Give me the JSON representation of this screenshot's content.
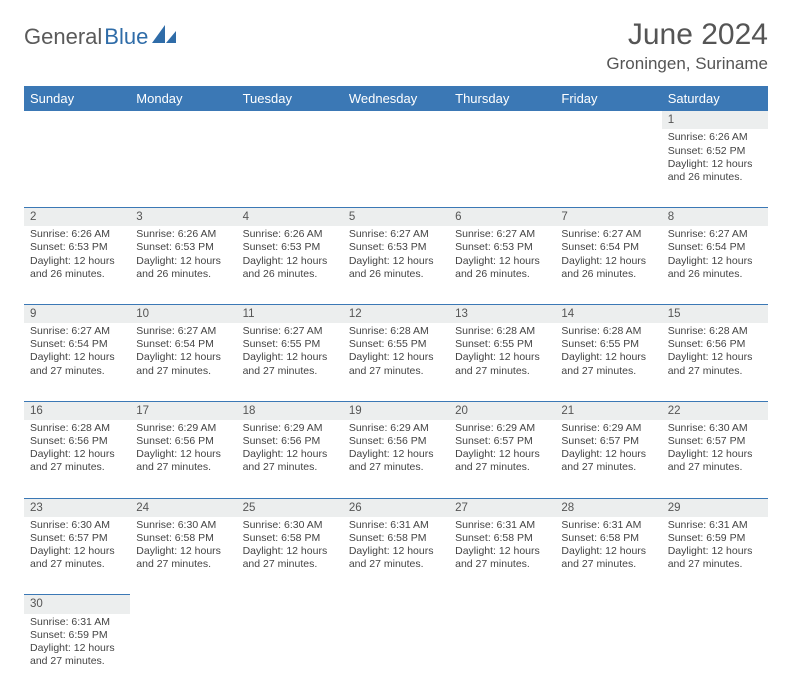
{
  "logo": {
    "text1": "General",
    "text2": "Blue"
  },
  "title": "June 2024",
  "location": "Groningen, Suriname",
  "columns": [
    "Sunday",
    "Monday",
    "Tuesday",
    "Wednesday",
    "Thursday",
    "Friday",
    "Saturday"
  ],
  "colors": {
    "header_bg": "#3b78b5",
    "header_text": "#ffffff",
    "daynum_bg": "#eceeee",
    "row_divider": "#3b78b5",
    "body_text": "#444444",
    "title_text": "#555555",
    "logo_gray": "#5a5a5a",
    "logo_blue": "#2f6ca8"
  },
  "weeks": [
    [
      null,
      null,
      null,
      null,
      null,
      null,
      {
        "n": "1",
        "sunrise": "Sunrise: 6:26 AM",
        "sunset": "Sunset: 6:52 PM",
        "daylight": "Daylight: 12 hours and 26 minutes."
      }
    ],
    [
      {
        "n": "2",
        "sunrise": "Sunrise: 6:26 AM",
        "sunset": "Sunset: 6:53 PM",
        "daylight": "Daylight: 12 hours and 26 minutes."
      },
      {
        "n": "3",
        "sunrise": "Sunrise: 6:26 AM",
        "sunset": "Sunset: 6:53 PM",
        "daylight": "Daylight: 12 hours and 26 minutes."
      },
      {
        "n": "4",
        "sunrise": "Sunrise: 6:26 AM",
        "sunset": "Sunset: 6:53 PM",
        "daylight": "Daylight: 12 hours and 26 minutes."
      },
      {
        "n": "5",
        "sunrise": "Sunrise: 6:27 AM",
        "sunset": "Sunset: 6:53 PM",
        "daylight": "Daylight: 12 hours and 26 minutes."
      },
      {
        "n": "6",
        "sunrise": "Sunrise: 6:27 AM",
        "sunset": "Sunset: 6:53 PM",
        "daylight": "Daylight: 12 hours and 26 minutes."
      },
      {
        "n": "7",
        "sunrise": "Sunrise: 6:27 AM",
        "sunset": "Sunset: 6:54 PM",
        "daylight": "Daylight: 12 hours and 26 minutes."
      },
      {
        "n": "8",
        "sunrise": "Sunrise: 6:27 AM",
        "sunset": "Sunset: 6:54 PM",
        "daylight": "Daylight: 12 hours and 26 minutes."
      }
    ],
    [
      {
        "n": "9",
        "sunrise": "Sunrise: 6:27 AM",
        "sunset": "Sunset: 6:54 PM",
        "daylight": "Daylight: 12 hours and 27 minutes."
      },
      {
        "n": "10",
        "sunrise": "Sunrise: 6:27 AM",
        "sunset": "Sunset: 6:54 PM",
        "daylight": "Daylight: 12 hours and 27 minutes."
      },
      {
        "n": "11",
        "sunrise": "Sunrise: 6:27 AM",
        "sunset": "Sunset: 6:55 PM",
        "daylight": "Daylight: 12 hours and 27 minutes."
      },
      {
        "n": "12",
        "sunrise": "Sunrise: 6:28 AM",
        "sunset": "Sunset: 6:55 PM",
        "daylight": "Daylight: 12 hours and 27 minutes."
      },
      {
        "n": "13",
        "sunrise": "Sunrise: 6:28 AM",
        "sunset": "Sunset: 6:55 PM",
        "daylight": "Daylight: 12 hours and 27 minutes."
      },
      {
        "n": "14",
        "sunrise": "Sunrise: 6:28 AM",
        "sunset": "Sunset: 6:55 PM",
        "daylight": "Daylight: 12 hours and 27 minutes."
      },
      {
        "n": "15",
        "sunrise": "Sunrise: 6:28 AM",
        "sunset": "Sunset: 6:56 PM",
        "daylight": "Daylight: 12 hours and 27 minutes."
      }
    ],
    [
      {
        "n": "16",
        "sunrise": "Sunrise: 6:28 AM",
        "sunset": "Sunset: 6:56 PM",
        "daylight": "Daylight: 12 hours and 27 minutes."
      },
      {
        "n": "17",
        "sunrise": "Sunrise: 6:29 AM",
        "sunset": "Sunset: 6:56 PM",
        "daylight": "Daylight: 12 hours and 27 minutes."
      },
      {
        "n": "18",
        "sunrise": "Sunrise: 6:29 AM",
        "sunset": "Sunset: 6:56 PM",
        "daylight": "Daylight: 12 hours and 27 minutes."
      },
      {
        "n": "19",
        "sunrise": "Sunrise: 6:29 AM",
        "sunset": "Sunset: 6:56 PM",
        "daylight": "Daylight: 12 hours and 27 minutes."
      },
      {
        "n": "20",
        "sunrise": "Sunrise: 6:29 AM",
        "sunset": "Sunset: 6:57 PM",
        "daylight": "Daylight: 12 hours and 27 minutes."
      },
      {
        "n": "21",
        "sunrise": "Sunrise: 6:29 AM",
        "sunset": "Sunset: 6:57 PM",
        "daylight": "Daylight: 12 hours and 27 minutes."
      },
      {
        "n": "22",
        "sunrise": "Sunrise: 6:30 AM",
        "sunset": "Sunset: 6:57 PM",
        "daylight": "Daylight: 12 hours and 27 minutes."
      }
    ],
    [
      {
        "n": "23",
        "sunrise": "Sunrise: 6:30 AM",
        "sunset": "Sunset: 6:57 PM",
        "daylight": "Daylight: 12 hours and 27 minutes."
      },
      {
        "n": "24",
        "sunrise": "Sunrise: 6:30 AM",
        "sunset": "Sunset: 6:58 PM",
        "daylight": "Daylight: 12 hours and 27 minutes."
      },
      {
        "n": "25",
        "sunrise": "Sunrise: 6:30 AM",
        "sunset": "Sunset: 6:58 PM",
        "daylight": "Daylight: 12 hours and 27 minutes."
      },
      {
        "n": "26",
        "sunrise": "Sunrise: 6:31 AM",
        "sunset": "Sunset: 6:58 PM",
        "daylight": "Daylight: 12 hours and 27 minutes."
      },
      {
        "n": "27",
        "sunrise": "Sunrise: 6:31 AM",
        "sunset": "Sunset: 6:58 PM",
        "daylight": "Daylight: 12 hours and 27 minutes."
      },
      {
        "n": "28",
        "sunrise": "Sunrise: 6:31 AM",
        "sunset": "Sunset: 6:58 PM",
        "daylight": "Daylight: 12 hours and 27 minutes."
      },
      {
        "n": "29",
        "sunrise": "Sunrise: 6:31 AM",
        "sunset": "Sunset: 6:59 PM",
        "daylight": "Daylight: 12 hours and 27 minutes."
      }
    ],
    [
      {
        "n": "30",
        "sunrise": "Sunrise: 6:31 AM",
        "sunset": "Sunset: 6:59 PM",
        "daylight": "Daylight: 12 hours and 27 minutes."
      },
      null,
      null,
      null,
      null,
      null,
      null
    ]
  ]
}
